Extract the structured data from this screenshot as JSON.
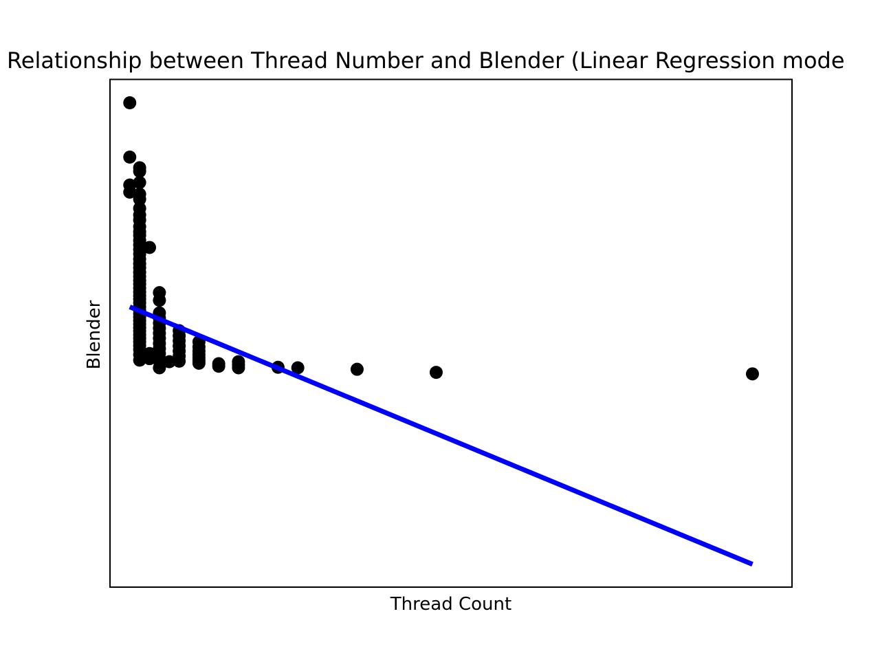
{
  "chart_data": {
    "type": "scatter",
    "title": "Relationship between Thread Number and Blender (Linear Regression mode",
    "xlabel": "Thread Count",
    "ylabel": "Blender",
    "ticks_shown": false,
    "grid": false,
    "legend": "none",
    "xlim": [
      0,
      69
    ],
    "ylim": [
      0,
      1
    ],
    "colors": {
      "points": "#000000",
      "fit_line": "#0000ff"
    },
    "series": [
      {
        "kind": "points",
        "x": [
          2,
          2,
          2,
          2,
          3,
          3,
          3,
          3,
          3,
          3,
          3,
          3,
          3,
          3,
          3,
          3,
          3,
          3,
          3,
          3,
          3,
          3,
          3,
          3,
          3,
          3,
          3,
          3,
          3,
          3,
          3,
          3,
          3,
          3,
          3,
          3,
          3,
          3,
          3,
          3,
          3,
          3,
          3,
          3,
          3,
          3,
          4,
          4,
          4,
          5,
          5,
          5,
          5,
          5,
          5,
          5,
          5,
          5,
          5,
          5,
          5,
          5,
          5,
          6,
          7,
          7,
          7,
          7,
          7,
          7,
          7,
          9,
          9,
          9,
          9,
          9,
          9,
          9,
          11,
          11,
          13,
          13,
          13,
          17,
          19,
          25,
          33,
          65
        ],
        "y": [
          0.954,
          0.847,
          0.792,
          0.778,
          0.826,
          0.819,
          0.797,
          0.774,
          0.764,
          0.746,
          0.733,
          0.723,
          0.71,
          0.7,
          0.693,
          0.683,
          0.674,
          0.665,
          0.656,
          0.646,
          0.637,
          0.629,
          0.62,
          0.612,
          0.604,
          0.597,
          0.589,
          0.581,
          0.574,
          0.567,
          0.56,
          0.552,
          0.545,
          0.538,
          0.532,
          0.525,
          0.518,
          0.511,
          0.504,
          0.497,
          0.49,
          0.483,
          0.476,
          0.468,
          0.458,
          0.447,
          0.669,
          0.46,
          0.45,
          0.58,
          0.565,
          0.54,
          0.53,
          0.52,
          0.51,
          0.5,
          0.49,
          0.48,
          0.47,
          0.46,
          0.45,
          0.445,
          0.432,
          0.444,
          0.505,
          0.495,
          0.485,
          0.475,
          0.465,
          0.455,
          0.445,
          0.483,
          0.473,
          0.465,
          0.458,
          0.452,
          0.446,
          0.441,
          0.44,
          0.435,
          0.444,
          0.438,
          0.432,
          0.433,
          0.432,
          0.429,
          0.423,
          0.42
        ]
      },
      {
        "kind": "fit_line",
        "x": [
          2,
          65
        ],
        "y": [
          0.552,
          0.045
        ]
      }
    ]
  }
}
